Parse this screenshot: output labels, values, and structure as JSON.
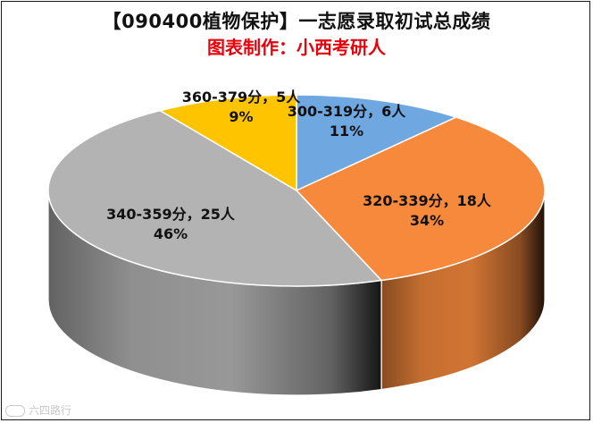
{
  "title": "【090400植物保护】一志愿录取初试总成绩",
  "subtitle": "图表制作：小西考研人",
  "watermark": "六四路行",
  "chart_data": {
    "type": "pie",
    "style": "3d",
    "title": "【090400植物保护】一志愿录取初试总成绩",
    "subtitle": "图表制作：小西考研人",
    "legend": "none",
    "unit": "人",
    "slices": [
      {
        "label": "300-319分",
        "value": 6,
        "percent": "11%",
        "color": "#6fa8e0",
        "text": "300-319分，6人"
      },
      {
        "label": "320-339分",
        "value": 18,
        "percent": "34%",
        "color": "#f6893c",
        "text": "320-339分，18人"
      },
      {
        "label": "340-359分",
        "value": 25,
        "percent": "46%",
        "color": "#b3b3b3",
        "text": "340-359分，25人"
      },
      {
        "label": "360-379分",
        "value": 5,
        "percent": "9%",
        "color": "#ffc400",
        "text": "360-379分，5人"
      }
    ]
  }
}
